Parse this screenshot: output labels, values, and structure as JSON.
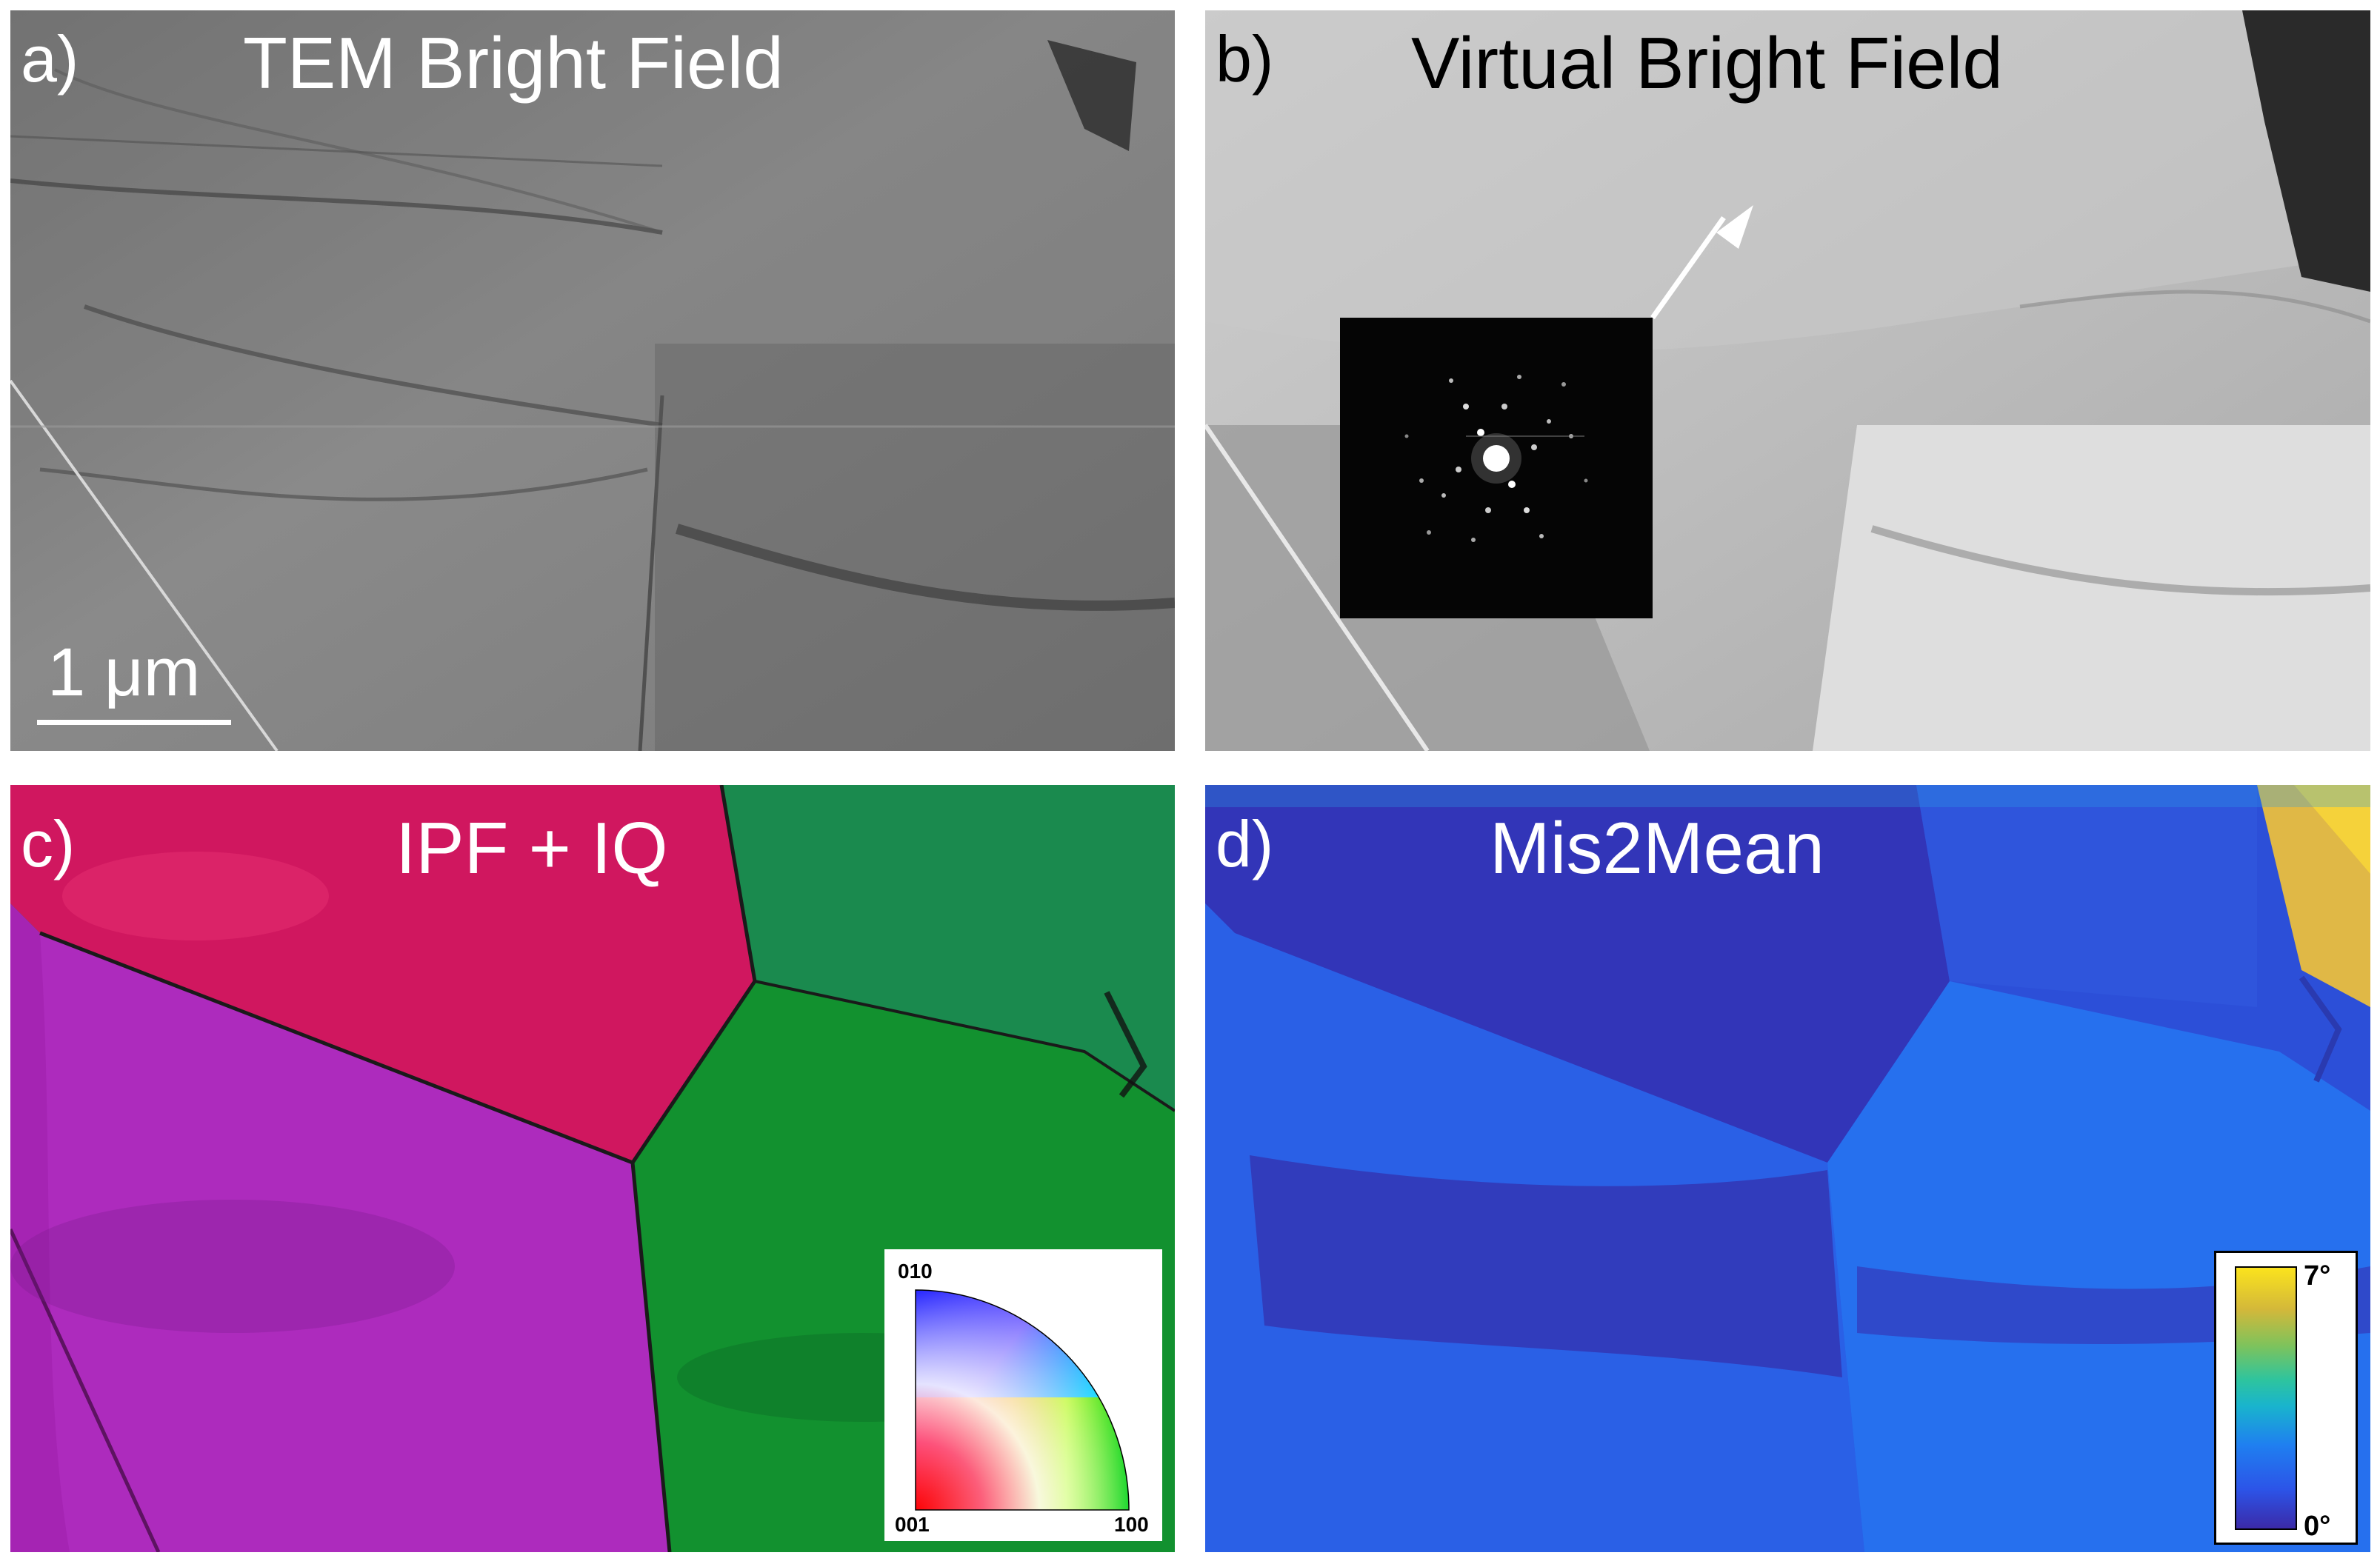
{
  "panels": {
    "a": {
      "letter": "a)",
      "title": "TEM Bright Field",
      "scale_bar": "1 μm"
    },
    "b": {
      "letter": "b)",
      "title": "Virtual Bright Field"
    },
    "c": {
      "letter": "c)",
      "title": "IPF + IQ",
      "key": {
        "top": "010",
        "bottom_left": "001",
        "bottom_right": "100"
      }
    },
    "d": {
      "letter": "d)",
      "title": "Mis2Mean",
      "colorbar": {
        "max": "7°",
        "min": "0°"
      }
    }
  }
}
